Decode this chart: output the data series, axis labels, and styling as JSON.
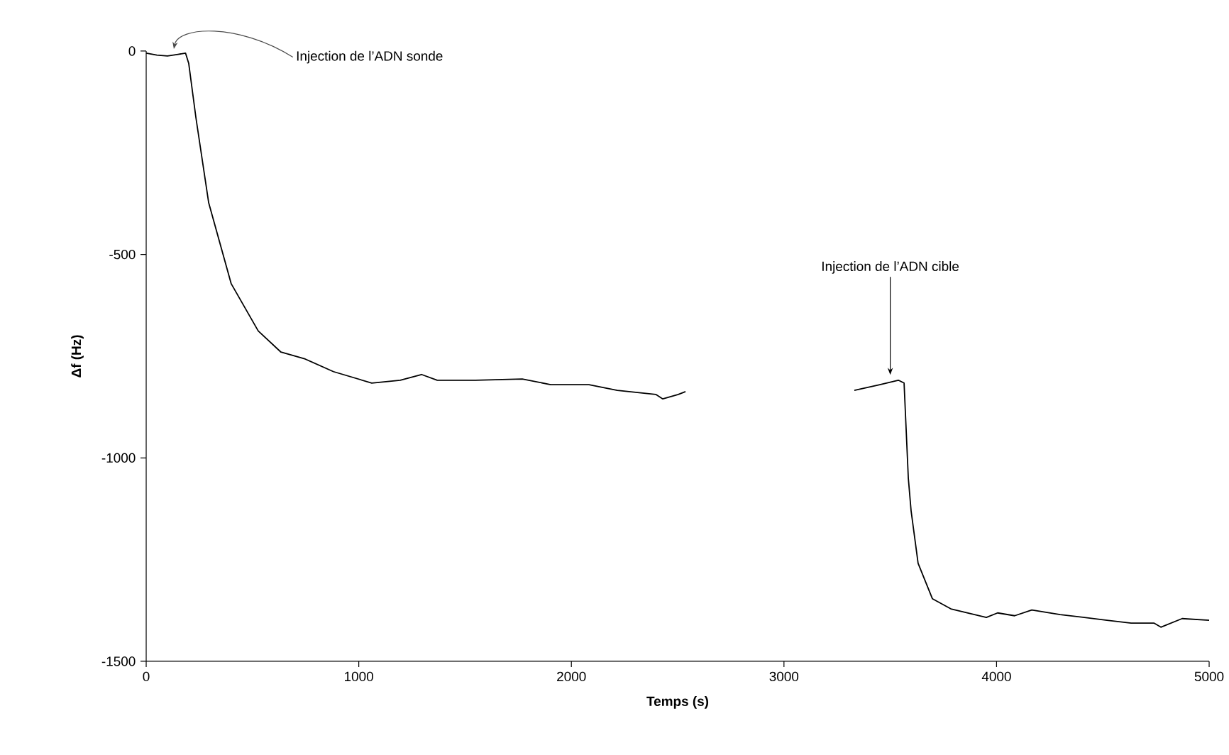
{
  "chart_data": {
    "type": "line",
    "xlabel": "Temps (s)",
    "ylabel": "Δf (Hz)",
    "xlim": [
      0,
      5000
    ],
    "ylim": [
      -1500,
      0
    ],
    "xticks": [
      0,
      1000,
      2000,
      3000,
      4000,
      5000
    ],
    "yticks": [
      0,
      -500,
      -1000,
      -1500
    ],
    "grid": false,
    "legend": false,
    "marker": "none",
    "line_style": "solid",
    "series": [
      {
        "color": "#000000",
        "x": [
          0,
          50,
          100,
          150,
          185,
          200,
          234,
          294,
          400,
          527,
          634,
          748,
          881,
          1061,
          1195,
          1295,
          1369,
          1549,
          1769,
          1903,
          2083,
          2216,
          2397,
          2430,
          2503,
          2537
        ],
        "values": [
          -5,
          -10,
          -12,
          -8,
          -5,
          -30,
          -164,
          -373,
          -572,
          -688,
          -740,
          -757,
          -788,
          -816,
          -809,
          -795,
          -809,
          -809,
          -806,
          -820,
          -820,
          -834,
          -844,
          -855,
          -844,
          -837
        ]
      },
      {
        "color": "#000000",
        "x": [
          3331,
          3451,
          3538,
          3565,
          3585,
          3598,
          3631,
          3698,
          3785,
          3952,
          4005,
          4085,
          4166,
          4299,
          4519,
          4633,
          4740,
          4773,
          4873,
          5000
        ],
        "values": [
          -834,
          -820,
          -809,
          -816,
          -1050,
          -1130,
          -1259,
          -1346,
          -1371,
          -1392,
          -1381,
          -1388,
          -1374,
          -1385,
          -1399,
          -1406,
          -1406,
          -1416,
          -1395,
          -1399
        ]
      }
    ],
    "annotations": [
      "Injection de l’ADN sonde",
      "Injection de l’ADN cible"
    ]
  }
}
